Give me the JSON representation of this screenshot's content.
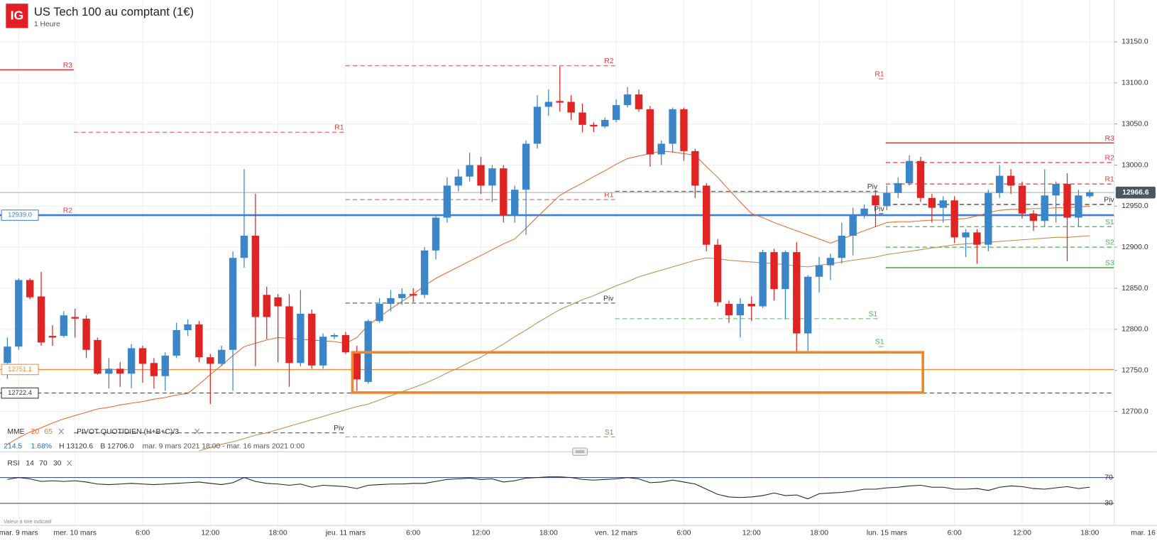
{
  "header": {
    "logo": "IG",
    "title": "US Tech 100 au comptant (1€)",
    "interval": "1 Heure"
  },
  "chart_data": {
    "type": "candlestick",
    "categories": [
      null,
      "mar. 9 mars",
      null,
      null,
      null,
      null,
      "mer. 10 mars",
      null,
      null,
      null,
      null,
      null,
      "6:00",
      null,
      null,
      null,
      null,
      null,
      "12:00",
      null,
      null,
      null,
      null,
      null,
      "18:00",
      null,
      null,
      null,
      null,
      null,
      "jeu. 11 mars",
      null,
      null,
      null,
      null,
      null,
      "6:00",
      null,
      null,
      null,
      null,
      null,
      "12:00",
      null,
      null,
      null,
      null,
      null,
      "18:00",
      null,
      null,
      null,
      null,
      null,
      "ven. 12 mars",
      null,
      null,
      null,
      null,
      null,
      "6:00",
      null,
      null,
      null,
      null,
      null,
      "12:00",
      null,
      null,
      null,
      null,
      null,
      "18:00",
      null,
      null,
      null,
      null,
      null,
      "lun. 15 mars",
      null,
      null,
      null,
      null,
      null,
      "6:00",
      null,
      null,
      null,
      null,
      null,
      "12:00",
      null,
      null,
      null,
      null,
      null,
      "18:00",
      null,
      null,
      null,
      null,
      null,
      "mar. 16"
    ],
    "open": [
      12759,
      12779,
      12860,
      12840,
      12792,
      12792,
      12815,
      12813,
      12787,
      12746,
      12752,
      12746,
      12777,
      12759,
      12743,
      12768,
      12799,
      12806,
      12766,
      12758,
      12775,
      12887,
      12914,
      12842,
      12839,
      12828,
      12759,
      12819,
      12756,
      12791,
      12793,
      12772,
      12736,
      12810,
      12831,
      12838,
      12843,
      12842,
      12896,
      12936,
      12975,
      12986,
      13000,
      12975,
      12996,
      12939,
      12970,
      13026,
      13071,
      13078,
      13077,
      13064,
      13049,
      13047,
      13055,
      13073,
      13086,
      13068,
      13013,
      13026,
      13068,
      13017,
      12975,
      12903,
      12831,
      12817,
      12831,
      12828,
      12894,
      12849,
      12894,
      12795,
      12864,
      12878,
      12887,
      12914,
      12939,
      12963,
      12950,
      12966,
      12978,
      13005,
      12960,
      12948,
      12957,
      12912,
      12918,
      12903,
      12966,
      12987,
      12975,
      12941,
      12932,
      12963,
      12977,
      12936,
      12962,
      null,
      null,
      null,
      null,
      null,
      null
    ],
    "high": [
      12790,
      12862,
      12862,
      12870,
      12805,
      12822,
      12825,
      12817,
      12790,
      12765,
      12760,
      12782,
      12780,
      12765,
      12772,
      12808,
      12812,
      12810,
      12770,
      12780,
      12895,
      12995,
      12965,
      12852,
      12843,
      12843,
      12848,
      12824,
      12795,
      12795,
      12797,
      12780,
      12812,
      12838,
      12848,
      12850,
      12850,
      12900,
      12940,
      12985,
      12995,
      13015,
      13010,
      13000,
      13000,
      12975,
      13030,
      13085,
      13092,
      13120,
      13085,
      13075,
      13052,
      13058,
      13080,
      13095,
      13092,
      13072,
      13030,
      13070,
      13070,
      13020,
      12978,
      12910,
      12835,
      12838,
      12840,
      12897,
      12898,
      12896,
      12906,
      12866,
      12888,
      12892,
      12930,
      12948,
      12952,
      12970,
      12975,
      12985,
      13012,
      13010,
      12965,
      12962,
      12962,
      12922,
      12922,
      12970,
      13000,
      12995,
      12980,
      12945,
      12995,
      12980,
      12990,
      12970,
      12970,
      null,
      null,
      null,
      null,
      null,
      null
    ],
    "low": [
      12740,
      12775,
      12837,
      12780,
      12780,
      12790,
      12790,
      12765,
      12745,
      12728,
      12730,
      12728,
      12735,
      12728,
      12725,
      12765,
      12792,
      12760,
      12709,
      12755,
      12725,
      12875,
      12755,
      12788,
      12760,
      12730,
      12755,
      12752,
      12752,
      12788,
      12770,
      12725,
      12734,
      12808,
      12822,
      12830,
      12833,
      12838,
      12885,
      12930,
      12968,
      12980,
      12965,
      12955,
      12930,
      12930,
      12915,
      13020,
      13060,
      13065,
      13055,
      13040,
      13040,
      13045,
      13052,
      13070,
      13065,
      12998,
      13000,
      13015,
      13005,
      12960,
      12895,
      12828,
      12808,
      12790,
      12810,
      12826,
      12835,
      12812,
      12772,
      12772,
      12845,
      12860,
      12880,
      12890,
      12935,
      12925,
      12945,
      12960,
      12975,
      12955,
      12930,
      12930,
      12905,
      12888,
      12880,
      12895,
      12960,
      12965,
      12935,
      12920,
      12925,
      12930,
      12883,
      12925,
      12960,
      null,
      null,
      null,
      null,
      null,
      null
    ],
    "close": [
      12779,
      12860,
      12839,
      12784,
      12790,
      12817,
      12813,
      12775,
      12746,
      12752,
      12746,
      12777,
      12758,
      12743,
      12768,
      12799,
      12806,
      12766,
      12758,
      12775,
      12887,
      12914,
      12815,
      12815,
      12828,
      12759,
      12819,
      12756,
      12791,
      12793,
      12772,
      12739,
      12810,
      12831,
      12838,
      12843,
      12841,
      12896,
      12936,
      12975,
      12986,
      13000,
      12975,
      12996,
      12939,
      12970,
      13026,
      13071,
      13077,
      13076,
      13064,
      13049,
      13047,
      13055,
      13073,
      13086,
      13068,
      13013,
      13026,
      13068,
      13017,
      12975,
      12903,
      12833,
      12817,
      12831,
      12828,
      12894,
      12849,
      12894,
      12795,
      12864,
      12878,
      12887,
      12914,
      12939,
      12947,
      12951,
      12966,
      12978,
      13005,
      12960,
      12948,
      12957,
      12912,
      12918,
      12903,
      12966,
      12987,
      12975,
      12941,
      12932,
      12963,
      12977,
      12936,
      12963,
      12967,
      null,
      null,
      null,
      null,
      null,
      null
    ],
    "up_color": "#3a86c8",
    "down_color": "#e02424",
    "ylim": [
      12651,
      13201
    ],
    "yticks": [
      {
        "value": 12700,
        "label": "12700.0"
      },
      {
        "value": 12750,
        "label": "12750.0"
      },
      {
        "value": 12800,
        "label": "12800.0"
      },
      {
        "value": 12850,
        "label": "12850.0"
      },
      {
        "value": 12900,
        "label": "12900.0"
      },
      {
        "value": 12950,
        "label": "12950.0"
      },
      {
        "value": 13000,
        "label": "13000.0"
      },
      {
        "value": 13050,
        "label": "13050.0"
      },
      {
        "value": 13100,
        "label": "13100.0"
      },
      {
        "value": 13150,
        "label": "13150.0"
      }
    ],
    "grid": true,
    "ema": {
      "label": "MME",
      "series": [
        {
          "name": "20",
          "color": "#e2662e",
          "values": [
            12660,
            12668,
            12675,
            12680,
            12686,
            12691,
            12695,
            12699,
            12703,
            12705,
            12708,
            12710,
            12712,
            12715,
            12717,
            12720,
            12722,
            12733,
            12745,
            12756,
            12768,
            12779,
            12783,
            12787,
            12790,
            12789,
            12788,
            12787,
            12786,
            12785,
            12783,
            12790,
            12805,
            12815,
            12825,
            12834,
            12843,
            12853,
            12862,
            12869,
            12876,
            12883,
            12890,
            12897,
            12904,
            12910,
            12923,
            12937,
            12950,
            12963,
            12971,
            12978,
            12986,
            12993,
            13001,
            13008,
            13011,
            13014,
            13017,
            13016,
            13014,
            13012,
            12998,
            12985,
            12970,
            12955,
            12941,
            12936,
            12930,
            12925,
            12920,
            12915,
            12910,
            12905,
            12910,
            12915,
            12920,
            12925,
            12930,
            12931,
            12931,
            12932,
            12933,
            12933,
            12934,
            12935,
            12938,
            12942,
            12945,
            12946,
            12946,
            12947,
            12947,
            12948,
            12948,
            12949,
            12950,
            null,
            null,
            null,
            null,
            null,
            null
          ]
        },
        {
          "name": "65",
          "color": "#c08a4a",
          "values": [
            null,
            null,
            null,
            null,
            null,
            null,
            null,
            null,
            null,
            null,
            null,
            null,
            null,
            null,
            null,
            null,
            null,
            12652,
            12656,
            12660,
            12663,
            12667,
            12671,
            12674,
            12678,
            12682,
            12686,
            12690,
            12694,
            12698,
            12702,
            12706,
            12709,
            12714,
            12719,
            12724,
            12729,
            12734,
            12740,
            12747,
            12753,
            12760,
            12766,
            12774,
            12782,
            12791,
            12799,
            12808,
            12816,
            12824,
            12830,
            12836,
            12841,
            12847,
            12853,
            12858,
            12864,
            12868,
            12872,
            12876,
            12880,
            12884,
            12887,
            12886,
            12884,
            12883,
            12882,
            12881,
            12880,
            12879,
            12877,
            12876,
            12878,
            12880,
            12882,
            12884,
            12886,
            12888,
            12891,
            12893,
            12895,
            12897,
            12899,
            12901,
            12903,
            12904,
            12905,
            12906,
            12907,
            12908,
            12909,
            12910,
            12911,
            12912,
            12912,
            12913,
            12914,
            null,
            null,
            null,
            null,
            null,
            null
          ]
        }
      ]
    },
    "pivot": {
      "label": "PIVOT QUOTIDIEN (H+B+C)/3",
      "colors": {
        "R": "#e03c3c",
        "P": "#333333",
        "S": "#4caf50"
      },
      "days": [
        {
          "levels": [
            {
              "name": "R3",
              "value": 13116
            },
            {
              "name": "R2",
              "value": 12939
            }
          ]
        },
        {
          "levels": [
            {
              "name": "R1",
              "value": 13040
            },
            {
              "name": "Piv",
              "value": 12674
            }
          ]
        },
        {
          "levels": [
            {
              "name": "R2",
              "value": 13121
            },
            {
              "name": "R1",
              "value": 12958
            },
            {
              "name": "Piv",
              "value": 12832
            },
            {
              "name": "S1",
              "value": 12669
            }
          ]
        },
        {
          "levels": [
            {
              "name": "Piv",
              "value": 12968
            },
            {
              "name": "S1",
              "value": 12813
            }
          ]
        },
        {
          "levels": [
            {
              "name": "R1",
              "value": 13105
            },
            {
              "name": "Piv",
              "value": 12941
            },
            {
              "name": "S1",
              "value": 12779
            }
          ]
        },
        {
          "levels": [
            {
              "name": "R3",
              "value": 13027
            },
            {
              "name": "R2",
              "value": 13003
            },
            {
              "name": "R1",
              "value": 12977
            },
            {
              "name": "Piv",
              "value": 12952
            },
            {
              "name": "S1",
              "value": 12925
            },
            {
              "name": "S2",
              "value": 12900
            },
            {
              "name": "S3",
              "value": 12875
            }
          ]
        }
      ]
    },
    "hlines": [
      {
        "value": 12939,
        "label": "12939.0",
        "color": "#3d7fcc"
      },
      {
        "value": 12751.1,
        "label": "12751.1",
        "color": "#f0883a"
      },
      {
        "value": 12722.4,
        "label": "12722.4",
        "color": "#333333"
      }
    ],
    "last_price": {
      "value": 12966.6,
      "label": "12966.6",
      "color": "#4b5563"
    },
    "box": {
      "ylim": [
        12723,
        12772
      ],
      "color": "#f0852a"
    },
    "stats": {
      "change": "214.5",
      "change_pct": "1.68%",
      "high": "H 13120.6",
      "low": "B 12706.0",
      "range": "mar. 9 mars 2021 18:00 - mar. 16 mars 2021 0:00"
    },
    "rsi": {
      "label": "RSI",
      "params": [
        14,
        70,
        30
      ],
      "color": "#222222",
      "level_color": "#2c3e70",
      "ylim": [
        0,
        100
      ],
      "yticks": [
        70,
        30
      ],
      "values": [
        67,
        70,
        68,
        64,
        65,
        64,
        65,
        63,
        60,
        59,
        60,
        61,
        60,
        59,
        60,
        61,
        62,
        63,
        61,
        59,
        62,
        70,
        64,
        61,
        60,
        58,
        60,
        55,
        58,
        57,
        56,
        53,
        58,
        59,
        60,
        60,
        61,
        61,
        64,
        67,
        68,
        69,
        67,
        68,
        63,
        65,
        69,
        70,
        71,
        71,
        70,
        67,
        66,
        67,
        68,
        70,
        68,
        62,
        63,
        66,
        63,
        60,
        52,
        44,
        40,
        39,
        40,
        42,
        46,
        42,
        43,
        37,
        45,
        46,
        47,
        49,
        52,
        52,
        54,
        55,
        57,
        58,
        55,
        55,
        52,
        52,
        53,
        50,
        55,
        57,
        56,
        53,
        52,
        54,
        56,
        53,
        55,
        null,
        null,
        null,
        null,
        null,
        null
      ]
    },
    "note": "Valeur à titre indicatif"
  }
}
